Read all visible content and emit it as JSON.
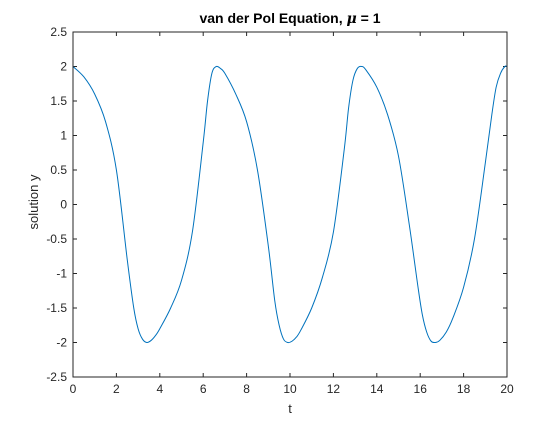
{
  "chart_data": {
    "type": "line",
    "title": "van der Pol Equation, μ = 1",
    "title_prefix": "van der Pol Equation, ",
    "title_symbol": "μ",
    "title_suffix": " = 1",
    "xlabel": "t",
    "ylabel": "solution y",
    "xlim": [
      0,
      20
    ],
    "ylim": [
      -2.5,
      2.5
    ],
    "xticks": [
      0,
      2,
      4,
      6,
      8,
      10,
      12,
      14,
      16,
      18,
      20
    ],
    "yticks": [
      -2.5,
      -2,
      -1.5,
      -1,
      -0.5,
      0,
      0.5,
      1,
      1.5,
      2,
      2.5
    ],
    "xtick_labels": [
      "0",
      "2",
      "4",
      "6",
      "8",
      "10",
      "12",
      "14",
      "16",
      "18",
      "20"
    ],
    "ytick_labels": [
      "-2.5",
      "-2",
      "-1.5",
      "-1",
      "-0.5",
      "0",
      "0.5",
      "1",
      "1.5",
      "2",
      "2.5"
    ],
    "grid": false,
    "series": [
      {
        "color": "#0072BD",
        "x": [
          0,
          0.5,
          1.0,
          1.5,
          2.0,
          2.5,
          2.8,
          3.0,
          3.2,
          3.4,
          3.6,
          3.8,
          4.0,
          4.5,
          5.0,
          5.5,
          6.0,
          6.2,
          6.4,
          6.6,
          6.8,
          7.0,
          7.5,
          8.0,
          8.5,
          9.0,
          9.3,
          9.5,
          9.7,
          9.9,
          10.1,
          10.3,
          10.5,
          11.0,
          11.5,
          12.0,
          12.5,
          12.7,
          12.9,
          13.1,
          13.3,
          13.5,
          14.0,
          14.5,
          15.0,
          15.5,
          15.9,
          16.1,
          16.3,
          16.5,
          16.7,
          16.9,
          17.2,
          17.5,
          18.0,
          18.5,
          19.0,
          19.3,
          19.5,
          19.7,
          19.9,
          20.0
        ],
        "y": [
          2.0,
          1.85,
          1.6,
          1.2,
          0.5,
          -0.8,
          -1.5,
          -1.8,
          -1.95,
          -2.0,
          -1.97,
          -1.9,
          -1.8,
          -1.5,
          -1.1,
          -0.4,
          0.9,
          1.5,
          1.9,
          2.0,
          1.97,
          1.9,
          1.6,
          1.2,
          0.5,
          -0.6,
          -1.4,
          -1.75,
          -1.95,
          -2.0,
          -1.98,
          -1.92,
          -1.82,
          -1.5,
          -1.05,
          -0.4,
          0.8,
          1.4,
          1.8,
          1.97,
          2.0,
          1.95,
          1.7,
          1.3,
          0.7,
          -0.3,
          -1.2,
          -1.6,
          -1.85,
          -1.98,
          -2.0,
          -1.97,
          -1.85,
          -1.65,
          -1.2,
          -0.5,
          0.6,
          1.3,
          1.7,
          1.9,
          2.0,
          2.0
        ]
      }
    ]
  }
}
